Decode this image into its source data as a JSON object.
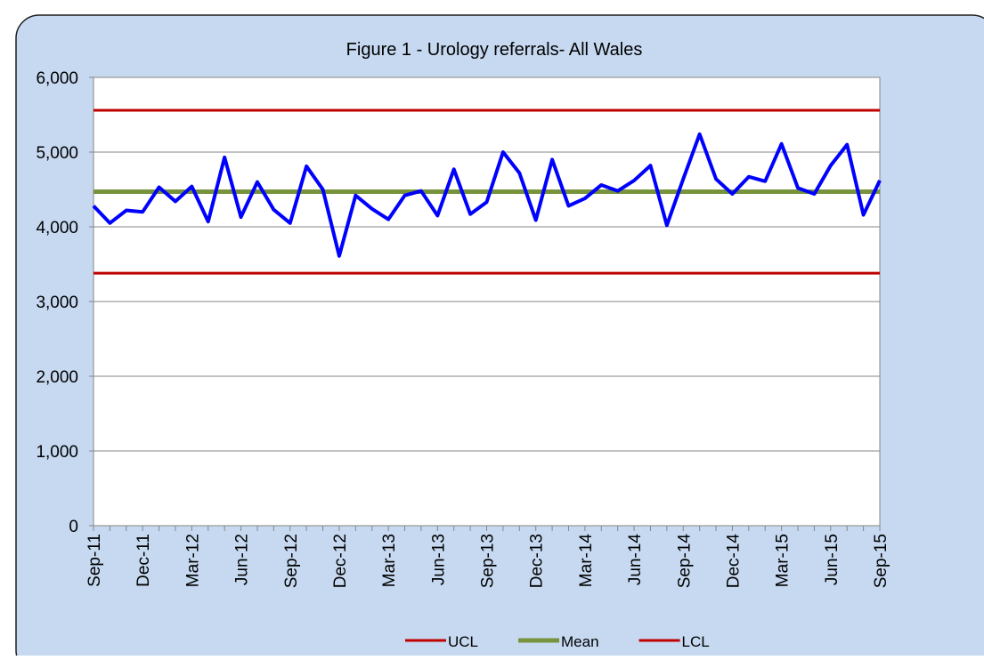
{
  "chart_data": {
    "type": "line",
    "title": "Figure 1 - Urology referrals- All Wales",
    "categories": [
      "Sep-11",
      null,
      null,
      "Dec-11",
      null,
      null,
      "Mar-12",
      null,
      null,
      "Jun-12",
      null,
      null,
      "Sep-12",
      null,
      null,
      "Dec-12",
      null,
      null,
      "Mar-13",
      null,
      null,
      "Jun-13",
      null,
      null,
      "Sep-13",
      null,
      null,
      "Dec-13",
      null,
      null,
      "Mar-14",
      null,
      null,
      "Jun-14",
      null,
      null,
      "Sep-14",
      null,
      null,
      "Dec-14",
      null,
      null,
      "Mar-15",
      null,
      null,
      "Jun-15",
      null,
      null,
      "Sep-15"
    ],
    "series": [
      {
        "color": "#0000ff",
        "values": [
          4280,
          4050,
          4220,
          4200,
          4530,
          4340,
          4540,
          4070,
          4930,
          4130,
          4600,
          4230,
          4050,
          4810,
          4500,
          3610,
          4420,
          4240,
          4100,
          4420,
          4480,
          4150,
          4770,
          4170,
          4330,
          5000,
          4720,
          4090,
          4900,
          4280,
          4380,
          4560,
          4480,
          4620,
          4820,
          4020,
          4640,
          5240,
          4640,
          4440,
          4670,
          4610,
          5110,
          4520,
          4440,
          4820,
          5100,
          4160,
          4620
        ]
      },
      {
        "name": "UCL",
        "color": "#c00000",
        "values": [
          5560,
          5560,
          5560,
          5560,
          5560,
          5560,
          5560,
          5560,
          5560,
          5560,
          5560,
          5560,
          5560,
          5560,
          5560,
          5560,
          5560,
          5560,
          5560,
          5560,
          5560,
          5560,
          5560,
          5560,
          5560,
          5560,
          5560,
          5560,
          5560,
          5560,
          5560,
          5560,
          5560,
          5560,
          5560,
          5560,
          5560,
          5560,
          5560,
          5560,
          5560,
          5560,
          5560,
          5560,
          5560,
          5560,
          5560,
          5560,
          5560
        ]
      },
      {
        "name": "Mean",
        "color": "#77933c",
        "values": [
          4470,
          4470,
          4470,
          4470,
          4470,
          4470,
          4470,
          4470,
          4470,
          4470,
          4470,
          4470,
          4470,
          4470,
          4470,
          4470,
          4470,
          4470,
          4470,
          4470,
          4470,
          4470,
          4470,
          4470,
          4470,
          4470,
          4470,
          4470,
          4470,
          4470,
          4470,
          4470,
          4470,
          4470,
          4470,
          4470,
          4470,
          4470,
          4470,
          4470,
          4470,
          4470,
          4470,
          4470,
          4470,
          4470,
          4470,
          4470,
          4470
        ]
      },
      {
        "name": "LCL",
        "color": "#c00000",
        "values": [
          3380,
          3380,
          3380,
          3380,
          3380,
          3380,
          3380,
          3380,
          3380,
          3380,
          3380,
          3380,
          3380,
          3380,
          3380,
          3380,
          3380,
          3380,
          3380,
          3380,
          3380,
          3380,
          3380,
          3380,
          3380,
          3380,
          3380,
          3380,
          3380,
          3380,
          3380,
          3380,
          3380,
          3380,
          3380,
          3380,
          3380,
          3380,
          3380,
          3380,
          3380,
          3380,
          3380,
          3380,
          3380,
          3380,
          3380,
          3380,
          3380
        ]
      }
    ],
    "ylim": [
      0,
      6000
    ],
    "yticks": [
      0,
      {
        "value": 1000,
        "label": "1,000"
      },
      {
        "value": 2000,
        "label": "2,000"
      },
      {
        "value": 3000,
        "label": "3,000"
      },
      {
        "value": 4000,
        "label": "4,000"
      },
      {
        "value": 5000,
        "label": "5,000"
      },
      {
        "value": 6000,
        "label": "6,000"
      }
    ],
    "grid": true,
    "legend": "bottom"
  }
}
